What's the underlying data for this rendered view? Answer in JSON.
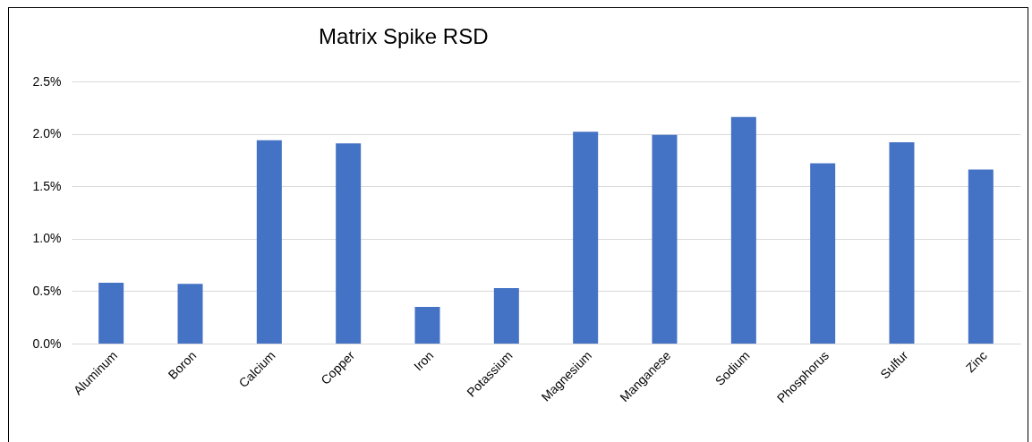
{
  "chart_data": {
    "type": "bar",
    "title": "Matrix Spike RSD",
    "categories": [
      "Aluminum",
      "Boron",
      "Calcium",
      "Copper",
      "Iron",
      "Potassium",
      "Magnesium",
      "Manganese",
      "Sodium",
      "Phosphorus",
      "Sulfur",
      "Zinc"
    ],
    "values": [
      0.58,
      0.57,
      1.94,
      1.91,
      0.35,
      0.53,
      2.02,
      1.99,
      2.16,
      1.72,
      1.92,
      1.66
    ],
    "color": "#4472c4",
    "ylim": [
      0,
      2.5
    ],
    "yticks": [
      {
        "value": 0,
        "label": "0.0%"
      },
      {
        "value": 0.5,
        "label": "0.5%"
      },
      {
        "value": 1,
        "label": "1.0%"
      },
      {
        "value": 1.5,
        "label": "1.5%"
      },
      {
        "value": 2,
        "label": "2.0%"
      },
      {
        "value": 2.5,
        "label": "2.5%"
      }
    ],
    "grid": "y"
  }
}
